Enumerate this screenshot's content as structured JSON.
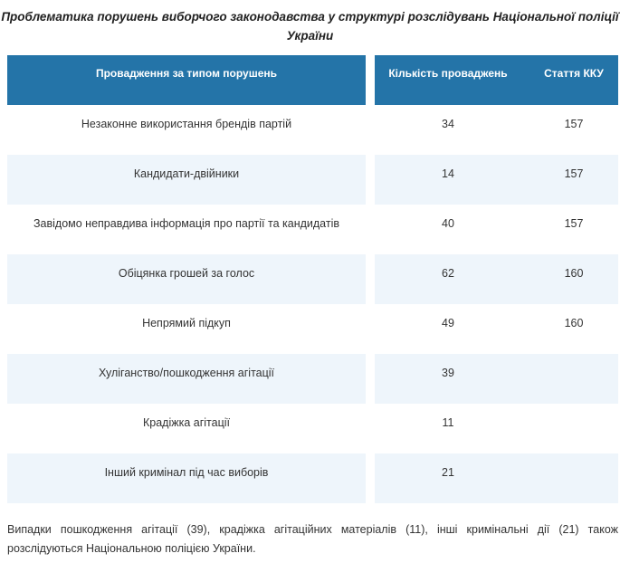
{
  "title": "Проблематика порушень виборчого законодавства у структурі розслідувань Національної поліції України",
  "table": {
    "headers": [
      "Провадження за типом порушень",
      "Кількість проваджень",
      "Стаття ККУ"
    ],
    "rows": [
      {
        "type": "Незаконне використання брендів партій",
        "count": "34",
        "article": "157"
      },
      {
        "type": "Кандидати-двійники",
        "count": "14",
        "article": "157"
      },
      {
        "type": "Завідомо неправдива інформація про партії та кандидатів",
        "count": "40",
        "article": "157"
      },
      {
        "type": "Обіцянка грошей за голос",
        "count": "62",
        "article": "160"
      },
      {
        "type": "Непрямий підкуп",
        "count": "49",
        "article": "160"
      },
      {
        "type": "Хуліганство/пошкодження агітації",
        "count": "39",
        "article": ""
      },
      {
        "type": "Крадіжка агітації",
        "count": "11",
        "article": ""
      },
      {
        "type": "Інший кримінал під час виборів",
        "count": "21",
        "article": ""
      }
    ]
  },
  "footnote": "Випадки пошкодження агітації (39), крадіжка агітаційних матеріалів (11), інші кримінальні дії  (21) також розслідуються Національною поліцією України.",
  "colors": {
    "header": "#2474a8",
    "alt_row": "#eef5fb"
  }
}
